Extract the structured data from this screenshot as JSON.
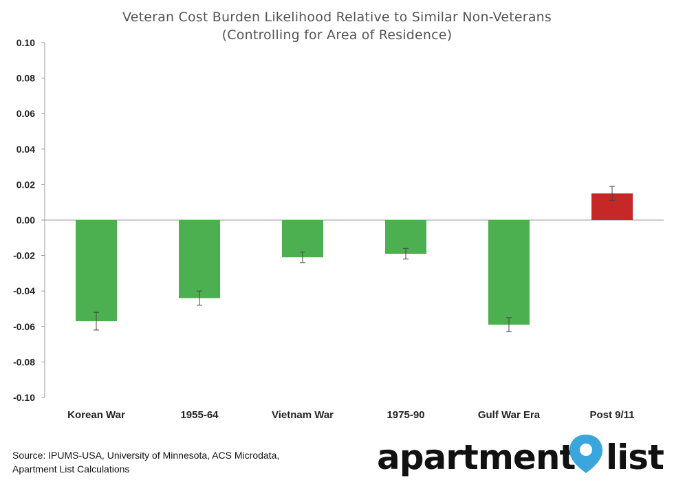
{
  "chart_data": {
    "type": "bar",
    "title": "Veteran Cost Burden Likelihood Relative to Similar Non-Veterans",
    "subtitle": "(Controlling for Area of Residence)",
    "categories": [
      "Korean War",
      "1955-64",
      "Vietnam War",
      "1975-90",
      "Gulf War Era",
      "Post 9/11"
    ],
    "values": [
      -0.057,
      -0.044,
      -0.021,
      -0.019,
      -0.059,
      0.015
    ],
    "error_low": [
      -0.062,
      -0.048,
      -0.024,
      -0.022,
      -0.063,
      0.011
    ],
    "error_high": [
      -0.052,
      -0.04,
      -0.018,
      -0.016,
      -0.055,
      0.019
    ],
    "bar_colors": [
      "#4caf50",
      "#4caf50",
      "#4caf50",
      "#4caf50",
      "#4caf50",
      "#c62828"
    ],
    "ylim": [
      -0.1,
      0.1
    ],
    "yticks": [
      "0.10",
      "0.08",
      "0.06",
      "0.04",
      "0.02",
      "0.00",
      "-0.02",
      "-0.04",
      "-0.06",
      "-0.08",
      "-0.10"
    ],
    "ytick_values": [
      0.1,
      0.08,
      0.06,
      0.04,
      0.02,
      0.0,
      -0.02,
      -0.04,
      -0.06,
      -0.08,
      -0.1
    ],
    "grid": false,
    "legend": "none"
  },
  "source_line1": "Source: IPUMS-USA, University of Minnesota, ACS Microdata,",
  "source_line2": "Apartment List Calculations",
  "logo": {
    "word1": "apartment",
    "word2": "list",
    "pin_color": "#3aa6dd"
  },
  "colors": {
    "axis": "#999999",
    "tick_text": "#222222",
    "title": "#555555"
  }
}
